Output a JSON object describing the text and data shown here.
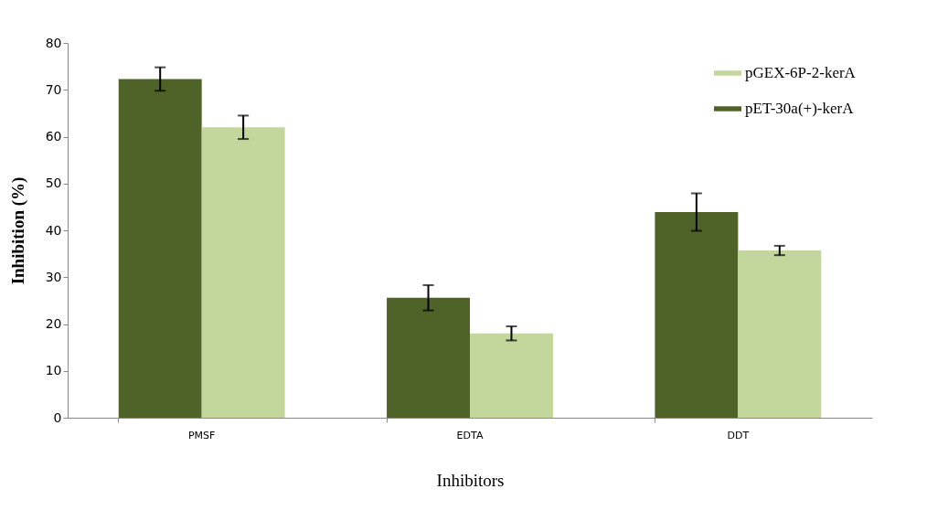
{
  "chart_data": {
    "type": "bar",
    "xlabel": "Inhibitors",
    "ylabel": "Inhibition (%)",
    "categories": [
      "PMSF",
      "EDTA",
      "DDT"
    ],
    "series": [
      {
        "name": "pET-30a(+)-kerA",
        "color": "#4f6228",
        "values": [
          72.3,
          25.6,
          43.9
        ],
        "errors": [
          2.5,
          2.7,
          4
        ]
      },
      {
        "name": "pGEX-6P-2-kerA",
        "color": "#c3d69b",
        "values": [
          62,
          18,
          35.7
        ],
        "errors": [
          2.5,
          1.5,
          1
        ]
      }
    ],
    "ylim": [
      0,
      80
    ],
    "yticks": [
      0,
      10,
      20,
      30,
      40,
      50,
      60,
      70,
      80
    ],
    "grid": false,
    "legend": "top right"
  }
}
